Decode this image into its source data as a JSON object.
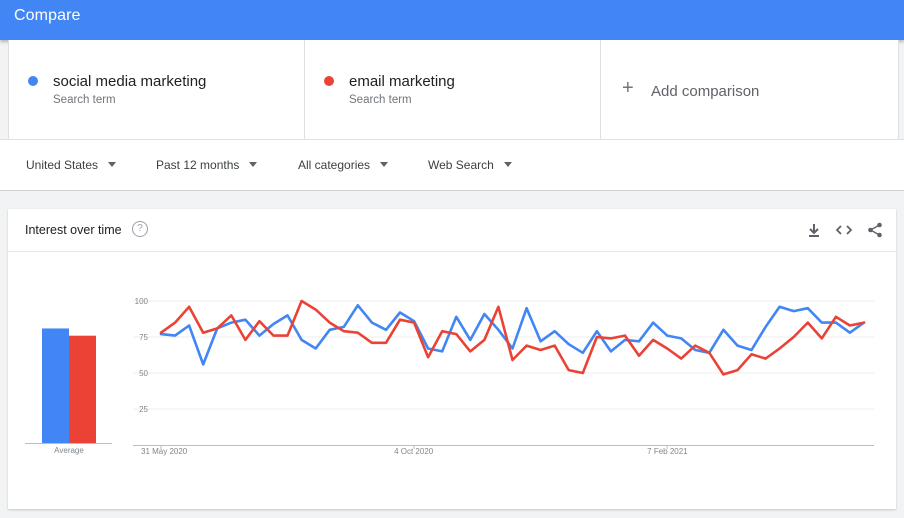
{
  "header": {
    "title": "Compare"
  },
  "terms": [
    {
      "name": "social media marketing",
      "sub": "Search term",
      "color": "#4285f4"
    },
    {
      "name": "email marketing",
      "sub": "Search term",
      "color": "#ea4335"
    }
  ],
  "add_comparison": {
    "plus": "+",
    "label": "Add comparison"
  },
  "filters": {
    "region": "United States",
    "period": "Past 12 months",
    "category": "All categories",
    "search_type": "Web Search"
  },
  "card": {
    "title": "Interest over time",
    "help_icon": "?",
    "icons": [
      "download-icon",
      "embed-code-icon",
      "share-icon"
    ]
  },
  "chart_data": {
    "type": "line",
    "title": "Interest over time",
    "ylim": [
      0,
      100
    ],
    "yticks": [
      25,
      50,
      75,
      100
    ],
    "xtick_labels": [
      {
        "label": "31 May 2020",
        "index": 0
      },
      {
        "label": "4 Oct 2020",
        "index": 18
      },
      {
        "label": "7 Feb 2021",
        "index": 36
      }
    ],
    "averages_label": "Average",
    "averages": [
      {
        "name": "social media marketing",
        "value": 79,
        "color": "#4285f4"
      },
      {
        "name": "email marketing",
        "value": 74,
        "color": "#ea4335"
      }
    ],
    "series": [
      {
        "name": "social media marketing",
        "color": "#4285f4",
        "values": [
          77,
          76,
          83,
          56,
          81,
          85,
          87,
          76,
          84,
          90,
          73,
          67,
          80,
          82,
          97,
          85,
          80,
          92,
          86,
          67,
          65,
          89,
          73,
          91,
          80,
          67,
          95,
          72,
          79,
          70,
          64,
          79,
          65,
          73,
          72,
          85,
          76,
          74,
          66,
          64,
          80,
          69,
          66,
          82,
          96,
          93,
          95,
          85,
          85,
          78,
          85
        ]
      },
      {
        "name": "email marketing",
        "color": "#ea4335",
        "values": [
          78,
          85,
          96,
          78,
          81,
          90,
          73,
          86,
          76,
          76,
          100,
          94,
          85,
          79,
          78,
          71,
          71,
          87,
          85,
          61,
          79,
          77,
          65,
          73,
          96,
          59,
          69,
          66,
          69,
          52,
          50,
          75,
          74,
          76,
          62,
          73,
          67,
          60,
          69,
          64,
          49,
          52,
          63,
          60,
          67,
          75,
          85,
          74,
          89,
          83,
          85
        ]
      }
    ]
  }
}
